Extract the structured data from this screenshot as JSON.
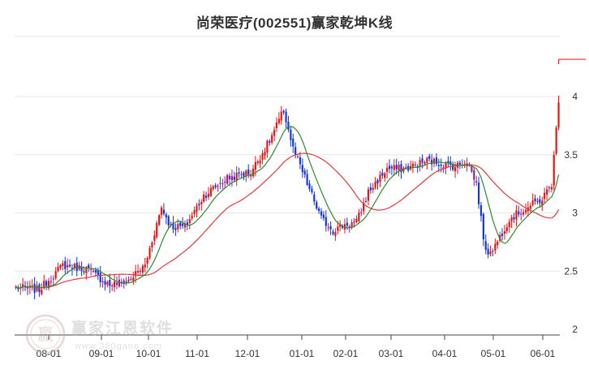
{
  "chart_data": {
    "type": "candlestick",
    "title": "尚荣医疗(002551)赢家乾坤K线",
    "x_tick_labels": [
      "08-01",
      "09-01",
      "10-01",
      "11-01",
      "12-01",
      "01-01",
      "02-01",
      "03-01",
      "04-01",
      "05-01",
      "06-01"
    ],
    "y_tick_labels": [
      "2",
      "2.5",
      "3",
      "3.5",
      "4"
    ],
    "ylim": [
      2,
      4.6
    ],
    "grid": "horizontal",
    "colors": {
      "up": "#ee1111",
      "down": "#1133ee",
      "neutral": "#8a1f9a",
      "ma_short": "#2e8b2e",
      "ma_long": "#e33b3b"
    },
    "anchors": [
      {
        "x_index": 0,
        "close": 2.36
      },
      {
        "x_index": 10,
        "close": 2.34
      },
      {
        "x_index": 20,
        "close": 2.55
      },
      {
        "x_index": 30,
        "close": 2.52
      },
      {
        "x_index": 40,
        "close": 2.38
      },
      {
        "x_index": 48,
        "close": 2.42
      },
      {
        "x_index": 55,
        "close": 2.55
      },
      {
        "x_index": 62,
        "close": 3.05
      },
      {
        "x_index": 66,
        "close": 2.88
      },
      {
        "x_index": 72,
        "close": 2.88
      },
      {
        "x_index": 80,
        "close": 3.15
      },
      {
        "x_index": 90,
        "close": 3.3
      },
      {
        "x_index": 100,
        "close": 3.35
      },
      {
        "x_index": 108,
        "close": 3.62
      },
      {
        "x_index": 114,
        "close": 3.88
      },
      {
        "x_index": 118,
        "close": 3.55
      },
      {
        "x_index": 124,
        "close": 3.25
      },
      {
        "x_index": 130,
        "close": 2.95
      },
      {
        "x_index": 135,
        "close": 2.85
      },
      {
        "x_index": 140,
        "close": 2.9
      },
      {
        "x_index": 145,
        "close": 2.92
      },
      {
        "x_index": 150,
        "close": 3.18
      },
      {
        "x_index": 158,
        "close": 3.38
      },
      {
        "x_index": 166,
        "close": 3.38
      },
      {
        "x_index": 175,
        "close": 3.45
      },
      {
        "x_index": 182,
        "close": 3.42
      },
      {
        "x_index": 187,
        "close": 3.4
      },
      {
        "x_index": 192,
        "close": 3.45
      },
      {
        "x_index": 196,
        "close": 3.25
      },
      {
        "x_index": 200,
        "close": 2.65
      },
      {
        "x_index": 204,
        "close": 2.72
      },
      {
        "x_index": 210,
        "close": 2.95
      },
      {
        "x_index": 218,
        "close": 3.05
      },
      {
        "x_index": 224,
        "close": 3.12
      },
      {
        "x_index": 228,
        "close": 3.25
      },
      {
        "x_index": 231,
        "close": 3.95
      }
    ],
    "latest_marker": {
      "x_index": 231,
      "price": 4.32
    }
  },
  "watermark": {
    "brand": "赢家江恩软件",
    "url": "www.360gann.com",
    "seal_char": "赢"
  }
}
